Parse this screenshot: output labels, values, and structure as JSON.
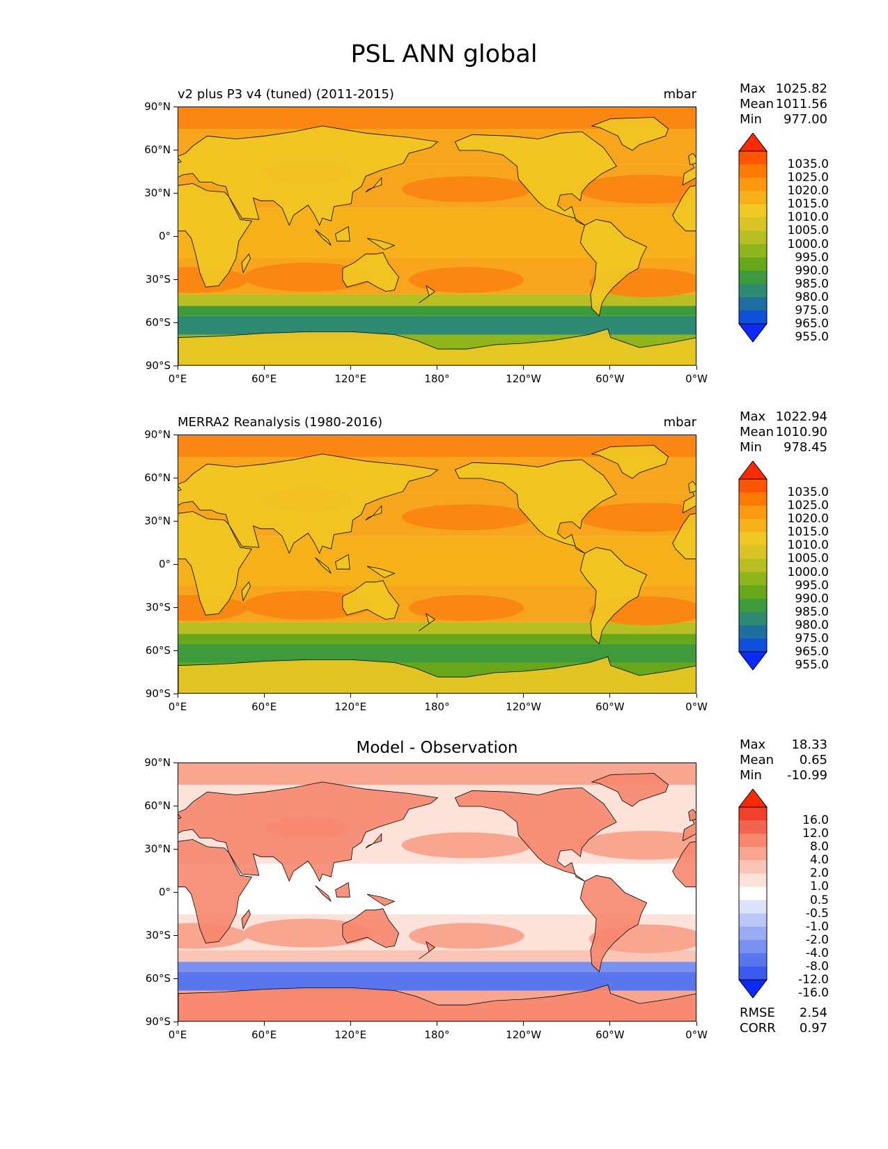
{
  "title": "PSL ANN global",
  "lat_ticks": [
    "90°N",
    "60°N",
    "30°N",
    "0°",
    "30°S",
    "60°S",
    "90°S"
  ],
  "lon_ticks": [
    "0°E",
    "60°E",
    "120°E",
    "180°",
    "120°W",
    "60°W",
    "0°W"
  ],
  "panels": [
    {
      "title": "v2 plus P3 v4 (tuned) (2011-2015)",
      "units": "mbar",
      "stats": [
        {
          "label": "Max",
          "value": "1025.82"
        },
        {
          "label": "Mean",
          "value": "1011.56"
        },
        {
          "label": "Min",
          "value": "977.00"
        }
      ],
      "colorbar": {
        "labels": [
          "1035.0",
          "1025.0",
          "1020.0",
          "1015.0",
          "1010.0",
          "1005.0",
          "1000.0",
          "995.0",
          "990.0",
          "985.0",
          "980.0",
          "975.0",
          "965.0",
          "955.0"
        ],
        "colors": [
          "#ff2a00",
          "#ff5500",
          "#ff7a00",
          "#fb9a10",
          "#f5b01a",
          "#f0c824",
          "#d8c426",
          "#b8bf22",
          "#8fb51c",
          "#66a81a",
          "#3e9a3a",
          "#2f8a72",
          "#1e6fa0",
          "#1050d8",
          "#0a2aff"
        ]
      },
      "map_colors": {
        "ocean": "#f7a51c",
        "tropics": "#f5b01a",
        "land": "#f0c824",
        "high": "#fa8712",
        "polar": "#3e9a3a",
        "deep": "#2f8a72",
        "ant": "#b8bf22",
        "ant2": "#8fb51c"
      }
    },
    {
      "title": "MERRA2 Reanalysis (1980-2016)",
      "units": "mbar",
      "stats": [
        {
          "label": "Max",
          "value": "1022.94"
        },
        {
          "label": "Mean",
          "value": "1010.90"
        },
        {
          "label": "Min",
          "value": "978.45"
        }
      ],
      "colorbar": {
        "labels": [
          "1035.0",
          "1025.0",
          "1020.0",
          "1015.0",
          "1010.0",
          "1005.0",
          "1000.0",
          "995.0",
          "990.0",
          "985.0",
          "980.0",
          "975.0",
          "965.0",
          "955.0"
        ],
        "colors": [
          "#ff2a00",
          "#ff5500",
          "#ff7a00",
          "#fb9a10",
          "#f5b01a",
          "#f0c824",
          "#d8c426",
          "#b8bf22",
          "#8fb51c",
          "#66a81a",
          "#3e9a3a",
          "#2f8a72",
          "#1e6fa0",
          "#1050d8",
          "#0a2aff"
        ]
      },
      "map_colors": {
        "ocean": "#f7a51c",
        "tropics": "#f5b01a",
        "land": "#f0c824",
        "high": "#fa8712",
        "polar": "#66a81a",
        "deep": "#3e9a3a",
        "ant": "#b8bf22",
        "ant2": "#66a81a"
      }
    },
    {
      "title": "Model - Observation",
      "units": "",
      "stats": [
        {
          "label": "Max",
          "value": "18.33"
        },
        {
          "label": "Mean",
          "value": "0.65"
        },
        {
          "label": "Min",
          "value": "-10.99"
        }
      ],
      "colorbar": {
        "labels": [
          "16.0",
          "12.0",
          "8.0",
          "4.0",
          "2.0",
          "1.0",
          "0.5",
          "-0.5",
          "-1.0",
          "-2.0",
          "-4.0",
          "-8.0",
          "-12.0",
          "-16.0"
        ],
        "colors": [
          "#ff2a00",
          "#f0402a",
          "#f26450",
          "#f6876e",
          "#f9a690",
          "#fbc5b6",
          "#fde2da",
          "#ffffff",
          "#dde2fb",
          "#bcc6f7",
          "#9aaaf3",
          "#7890ef",
          "#5a76ec",
          "#3a5af0",
          "#0a2aff"
        ]
      },
      "map_colors": {
        "ocean": "#fde2da",
        "tropics": "#ffffff",
        "land": "#f6876e",
        "high": "#f9a690",
        "polar": "#7890ef",
        "deep": "#5a76ec",
        "ant": "#fbc5b6",
        "ant2": "#f9a690"
      }
    }
  ],
  "diff_metrics": [
    {
      "label": "RMSE",
      "value": "2.54"
    },
    {
      "label": "CORR",
      "value": "0.97"
    }
  ]
}
